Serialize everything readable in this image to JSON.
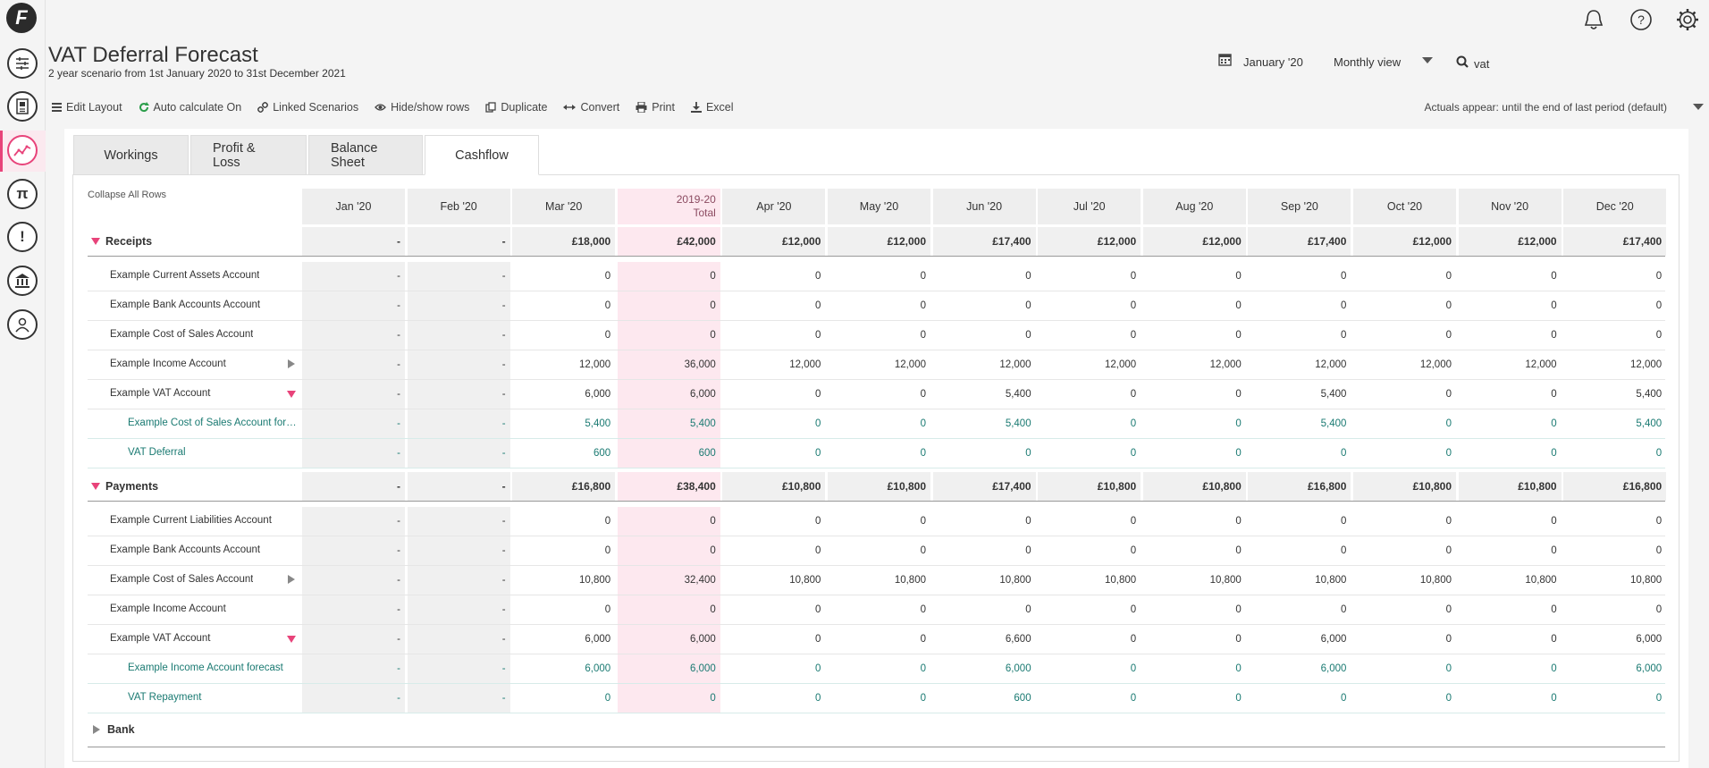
{
  "app": {
    "title": "VAT Deferral Forecast",
    "subtitle": "2 year scenario from 1st January 2020 to 31st December 2021",
    "logo": "F"
  },
  "header": {
    "date": "January '20",
    "view": "Monthly view",
    "search": "vat"
  },
  "toolbar": {
    "edit_layout": "Edit Layout",
    "auto_calc": "Auto calculate On",
    "linked": "Linked Scenarios",
    "hide_show": "Hide/show rows",
    "duplicate": "Duplicate",
    "convert": "Convert",
    "print": "Print",
    "excel": "Excel",
    "actuals": "Actuals appear: until the end of last period (default)"
  },
  "tabs": [
    "Workings",
    "Profit & Loss",
    "Balance Sheet",
    "Cashflow"
  ],
  "active_tab": "Cashflow",
  "table": {
    "collapse": "Collapse All Rows",
    "columns": [
      "Jan '20",
      "Feb '20",
      "Mar '20",
      "2019-20",
      "Apr '20",
      "May '20",
      "Jun '20",
      "Jul '20",
      "Aug '20",
      "Sep '20",
      "Oct '20",
      "Nov '20",
      "Dec '20"
    ],
    "total_sub": "Total",
    "rows": [
      {
        "label": "Receipts",
        "kind": "section",
        "values": [
          "-",
          "-",
          "£18,000",
          "£42,000",
          "£12,000",
          "£12,000",
          "£17,400",
          "£12,000",
          "£12,000",
          "£17,400",
          "£12,000",
          "£12,000",
          "£17,400"
        ]
      },
      {
        "label": "Example Current Assets Account",
        "kind": "item",
        "values": [
          "-",
          "-",
          "0",
          "0",
          "0",
          "0",
          "0",
          "0",
          "0",
          "0",
          "0",
          "0",
          "0"
        ]
      },
      {
        "label": "Example Bank Accounts Account",
        "kind": "item",
        "values": [
          "-",
          "-",
          "0",
          "0",
          "0",
          "0",
          "0",
          "0",
          "0",
          "0",
          "0",
          "0",
          "0"
        ]
      },
      {
        "label": "Example Cost of Sales Account",
        "kind": "item",
        "values": [
          "-",
          "-",
          "0",
          "0",
          "0",
          "0",
          "0",
          "0",
          "0",
          "0",
          "0",
          "0",
          "0"
        ]
      },
      {
        "label": "Example Income Account",
        "kind": "item",
        "toggle": "collapsed",
        "values": [
          "-",
          "-",
          "12,000",
          "36,000",
          "12,000",
          "12,000",
          "12,000",
          "12,000",
          "12,000",
          "12,000",
          "12,000",
          "12,000",
          "12,000"
        ]
      },
      {
        "label": "Example VAT Account",
        "kind": "item",
        "toggle": "expanded",
        "values": [
          "-",
          "-",
          "6,000",
          "6,000",
          "0",
          "0",
          "5,400",
          "0",
          "0",
          "5,400",
          "0",
          "0",
          "5,400"
        ]
      },
      {
        "label": "Example Cost of Sales Account fore…",
        "kind": "sub",
        "values": [
          "-",
          "-",
          "5,400",
          "5,400",
          "0",
          "0",
          "5,400",
          "0",
          "0",
          "5,400",
          "0",
          "0",
          "5,400"
        ]
      },
      {
        "label": "VAT Deferral",
        "kind": "sub",
        "values": [
          "-",
          "-",
          "600",
          "600",
          "0",
          "0",
          "0",
          "0",
          "0",
          "0",
          "0",
          "0",
          "0"
        ]
      },
      {
        "label": "Payments",
        "kind": "section",
        "values": [
          "-",
          "-",
          "£16,800",
          "£38,400",
          "£10,800",
          "£10,800",
          "£17,400",
          "£10,800",
          "£10,800",
          "£16,800",
          "£10,800",
          "£10,800",
          "£16,800"
        ]
      },
      {
        "label": "Example Current Liabilities Account",
        "kind": "item",
        "values": [
          "-",
          "-",
          "0",
          "0",
          "0",
          "0",
          "0",
          "0",
          "0",
          "0",
          "0",
          "0",
          "0"
        ]
      },
      {
        "label": "Example Bank Accounts Account",
        "kind": "item",
        "values": [
          "-",
          "-",
          "0",
          "0",
          "0",
          "0",
          "0",
          "0",
          "0",
          "0",
          "0",
          "0",
          "0"
        ]
      },
      {
        "label": "Example Cost of Sales Account",
        "kind": "item",
        "toggle": "collapsed",
        "values": [
          "-",
          "-",
          "10,800",
          "32,400",
          "10,800",
          "10,800",
          "10,800",
          "10,800",
          "10,800",
          "10,800",
          "10,800",
          "10,800",
          "10,800"
        ]
      },
      {
        "label": "Example Income Account",
        "kind": "item",
        "values": [
          "-",
          "-",
          "0",
          "0",
          "0",
          "0",
          "0",
          "0",
          "0",
          "0",
          "0",
          "0",
          "0"
        ]
      },
      {
        "label": "Example VAT Account",
        "kind": "item",
        "toggle": "expanded",
        "values": [
          "-",
          "-",
          "6,000",
          "6,000",
          "0",
          "0",
          "6,600",
          "0",
          "0",
          "6,000",
          "0",
          "0",
          "6,000"
        ]
      },
      {
        "label": "Example Income Account forecast",
        "kind": "sub",
        "values": [
          "-",
          "-",
          "6,000",
          "6,000",
          "0",
          "0",
          "6,000",
          "0",
          "0",
          "6,000",
          "0",
          "0",
          "6,000"
        ]
      },
      {
        "label": "VAT Repayment",
        "kind": "sub",
        "values": [
          "-",
          "-",
          "0",
          "0",
          "0",
          "0",
          "600",
          "0",
          "0",
          "0",
          "0",
          "0",
          "0"
        ]
      }
    ],
    "bank_label": "Bank"
  },
  "colors": {
    "accent": "#e8437a",
    "sub_text": "#1a7a72",
    "total_col": "#fde8ef"
  },
  "icons": [
    "logo-icon",
    "sliders-icon",
    "report-icon",
    "chart-icon",
    "pi-icon",
    "alert-icon",
    "bank-icon",
    "users-icon",
    "bell-icon",
    "help-icon",
    "gear-icon",
    "calendar-icon",
    "search-icon"
  ]
}
